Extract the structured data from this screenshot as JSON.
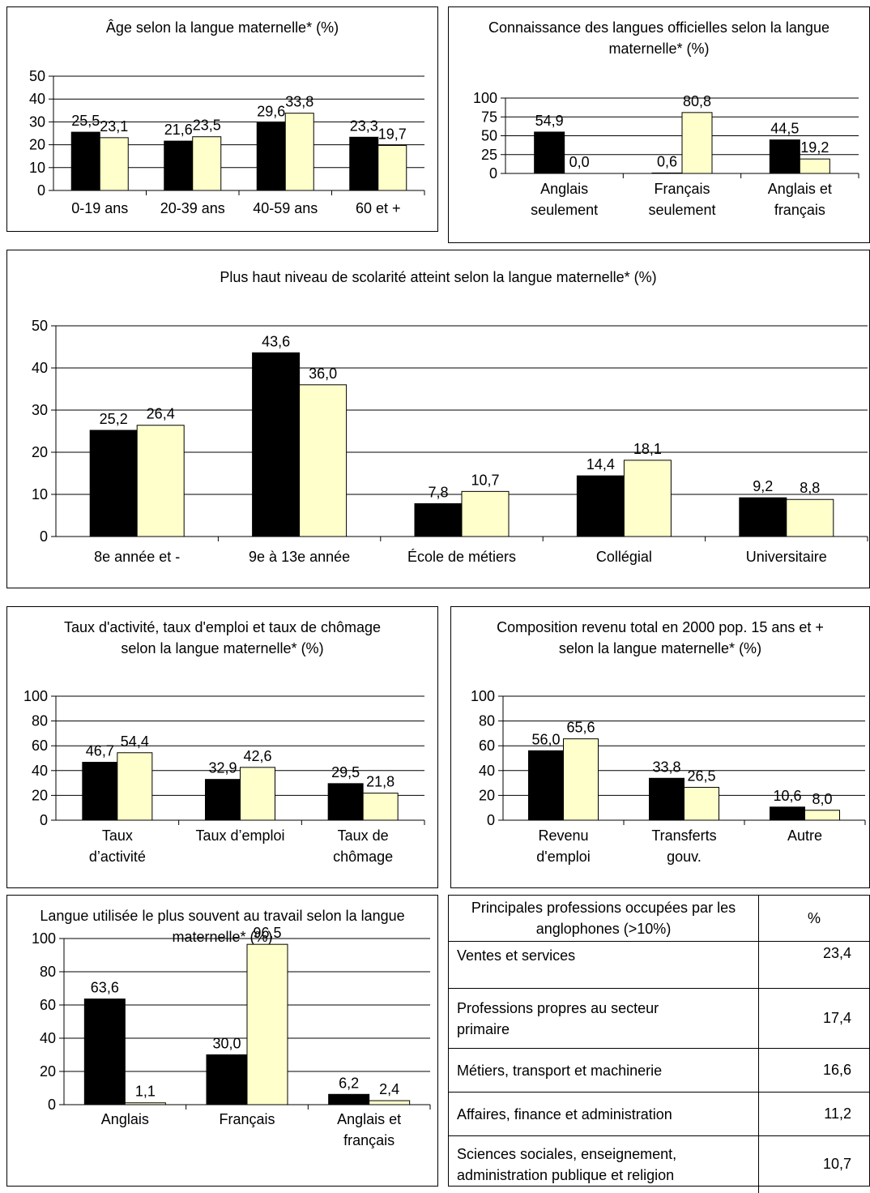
{
  "colors": {
    "series_a": "#000000",
    "series_b": "#FFFFCC"
  },
  "chart_data": [
    {
      "id": "age",
      "type": "bar",
      "title": "Âge selon la langue maternelle* (%)",
      "categories": [
        "0-19 ans",
        "20-39 ans",
        "40-59 ans",
        "60 et +"
      ],
      "series": [
        {
          "values": [
            25.5,
            21.6,
            29.6,
            23.3
          ],
          "labels": [
            "25,5",
            "21,6",
            "29,6",
            "23,3"
          ]
        },
        {
          "values": [
            23.1,
            23.5,
            33.8,
            19.7
          ],
          "labels": [
            "23,1",
            "23,5",
            "33,8",
            "19,7"
          ]
        }
      ],
      "ylim": [
        0,
        50
      ],
      "yticks": [
        "0",
        "10",
        "20",
        "30",
        "40",
        "50"
      ],
      "grid": true
    },
    {
      "id": "langues",
      "type": "bar",
      "title": "Connaissance des langues officielles selon la langue maternelle* (%)",
      "categories": [
        "Anglais seulement",
        "Français seulement",
        "Anglais et français"
      ],
      "series": [
        {
          "values": [
            54.9,
            0.6,
            44.5
          ],
          "labels": [
            "54,9",
            "0,6",
            "44,5"
          ]
        },
        {
          "values": [
            0.0,
            80.8,
            19.2
          ],
          "labels": [
            "0,0",
            "80,8",
            "19,2"
          ]
        }
      ],
      "ylim": [
        0,
        100
      ],
      "yticks": [
        "0",
        "25",
        "50",
        "75",
        "100"
      ],
      "grid": true
    },
    {
      "id": "scolarite",
      "type": "bar",
      "title": "Plus haut niveau de scolarité atteint selon la langue maternelle* (%)",
      "categories": [
        "8e année et -",
        "9e à 13e année",
        "École de métiers",
        "Collégial",
        "Universitaire"
      ],
      "series": [
        {
          "values": [
            25.2,
            43.6,
            7.8,
            14.4,
            9.2
          ],
          "labels": [
            "25,2",
            "43,6",
            "7,8",
            "14,4",
            "9,2"
          ]
        },
        {
          "values": [
            26.4,
            36.0,
            10.7,
            18.1,
            8.8
          ],
          "labels": [
            "26,4",
            "36,0",
            "10,7",
            "18,1",
            "8,8"
          ]
        }
      ],
      "ylim": [
        0,
        50
      ],
      "yticks": [
        "0",
        "10",
        "20",
        "30",
        "40",
        "50"
      ],
      "grid": true
    },
    {
      "id": "activite",
      "type": "bar",
      "title": "Taux d'activité, taux d'emploi et taux de chômage selon la langue maternelle* (%)",
      "categories": [
        "Taux d’activité",
        "Taux d’emploi",
        "Taux de chômage"
      ],
      "series": [
        {
          "values": [
            46.7,
            32.9,
            29.5
          ],
          "labels": [
            "46,7",
            "32,9",
            "29,5"
          ]
        },
        {
          "values": [
            54.4,
            42.6,
            21.8
          ],
          "labels": [
            "54,4",
            "42,6",
            "21,8"
          ]
        }
      ],
      "ylim": [
        0,
        100
      ],
      "yticks": [
        "0",
        "20",
        "40",
        "60",
        "80",
        "100"
      ],
      "grid": true
    },
    {
      "id": "revenu",
      "type": "bar",
      "title": "Composition revenu total en 2000 pop. 15 ans et + selon la langue maternelle* (%)",
      "categories": [
        "Revenu d'emploi",
        "Transferts gouv.",
        "Autre"
      ],
      "series": [
        {
          "values": [
            56.0,
            33.8,
            10.6
          ],
          "labels": [
            "56,0",
            "33,8",
            "10,6"
          ]
        },
        {
          "values": [
            65.6,
            26.5,
            8.0
          ],
          "labels": [
            "65,6",
            "26,5",
            "8,0"
          ]
        }
      ],
      "ylim": [
        0,
        100
      ],
      "yticks": [
        "0",
        "20",
        "40",
        "60",
        "80",
        "100"
      ],
      "grid": true
    },
    {
      "id": "travail",
      "type": "bar",
      "title": "Langue utilisée le plus souvent au travail selon la langue maternelle* (%)",
      "categories": [
        "Anglais",
        "Français",
        "Anglais et français"
      ],
      "series": [
        {
          "values": [
            63.6,
            30.0,
            6.2
          ],
          "labels": [
            "63,6",
            "30,0",
            "6,2"
          ]
        },
        {
          "values": [
            1.1,
            96.5,
            2.4
          ],
          "labels": [
            "1,1",
            "96,5",
            "2,4"
          ]
        }
      ],
      "ylim": [
        0,
        100
      ],
      "yticks": [
        "0",
        "20",
        "40",
        "60",
        "80",
        "100"
      ],
      "grid": true
    }
  ],
  "occupations": {
    "header_label": "Principales professions occupées par les anglophones (>10%)",
    "header_pct": "%",
    "rows": [
      {
        "label": "Ventes et services",
        "pct": "23,4"
      },
      {
        "label": "Professions propres au secteur primaire",
        "pct": "17,4"
      },
      {
        "label": "Métiers, transport et machinerie",
        "pct": "16,6"
      },
      {
        "label": "Affaires, finance et administration",
        "pct": "11,2"
      },
      {
        "label": "Sciences sociales, enseignement, administration publique et religion",
        "pct": "10,7"
      }
    ]
  }
}
